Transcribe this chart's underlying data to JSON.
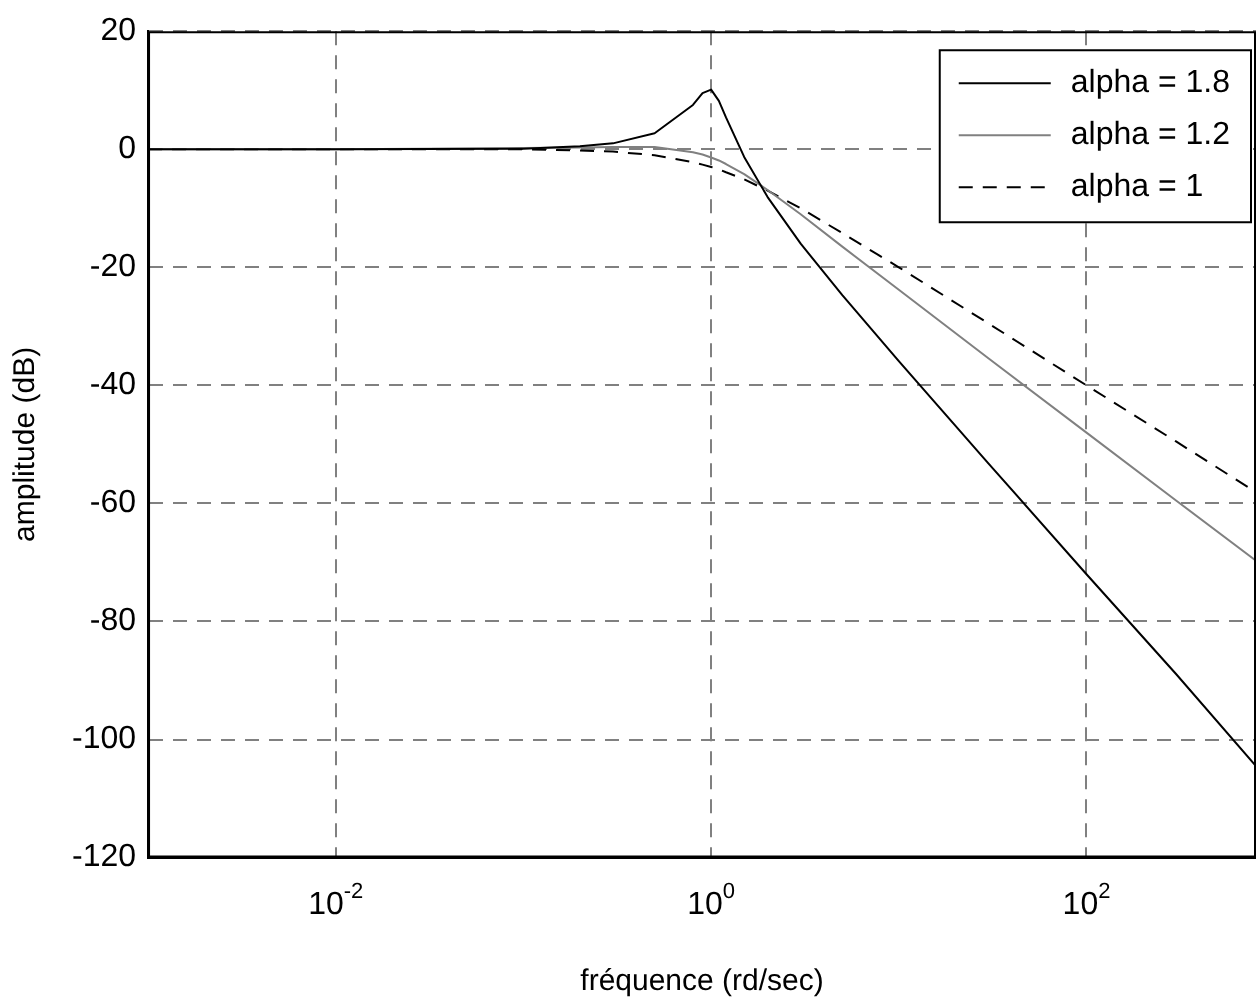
{
  "chart_data": {
    "type": "line",
    "xlabel": "fréquence (rd/sec)",
    "ylabel": "amplitude (dB)",
    "log": "x",
    "x": [
      0.001,
      0.01,
      0.1,
      0.2,
      0.3,
      0.5,
      0.8,
      0.9,
      1,
      1.1,
      1.2,
      1.5,
      2,
      3,
      5,
      10,
      30,
      100,
      300,
      800
    ],
    "series": [
      {
        "name": "alpha = 1.8",
        "color": "#000000",
        "line_style": "solid",
        "values": [
          0,
          0,
          0.1,
          0.5,
          1,
          2.7,
          7.5,
          9.5,
          10.1,
          8.2,
          5.4,
          -1.3,
          -8.1,
          -16,
          -24.7,
          -35.9,
          -53.2,
          -72,
          -88.9,
          -104.5
        ]
      },
      {
        "name": "alpha = 1.2",
        "color": "#808080",
        "line_style": "solid",
        "values": [
          0,
          0,
          0.2,
          0.3,
          0.4,
          0.4,
          -0.5,
          -0.9,
          -1.4,
          -1.9,
          -2.5,
          -4.2,
          -6.9,
          -11,
          -16.5,
          -23.8,
          -35.4,
          -48,
          -59.5,
          -69.7
        ]
      },
      {
        "name": "alpha = 1",
        "color": "#000000",
        "line_style": "dashed",
        "values": [
          0,
          0,
          0,
          -0.2,
          -0.4,
          -1,
          -2.2,
          -2.6,
          -3,
          -3.4,
          -3.9,
          -5.1,
          -7,
          -10,
          -14.2,
          -20,
          -29.5,
          -40,
          -49.5,
          -58.1
        ]
      }
    ],
    "xlim": [
      0.001,
      800
    ],
    "xticks": [
      {
        "value": 0.01,
        "label": "10$^{-2}$"
      },
      {
        "value": 1,
        "label": "10$^{0}$"
      },
      {
        "value": 100,
        "label": "10$^{2}$"
      }
    ],
    "ylim": [
      -120,
      20
    ],
    "yticks": [
      -120,
      -100,
      -80,
      -60,
      -40,
      -20,
      0,
      20
    ],
    "grid": true,
    "legend": "top right",
    "marker": "none"
  }
}
